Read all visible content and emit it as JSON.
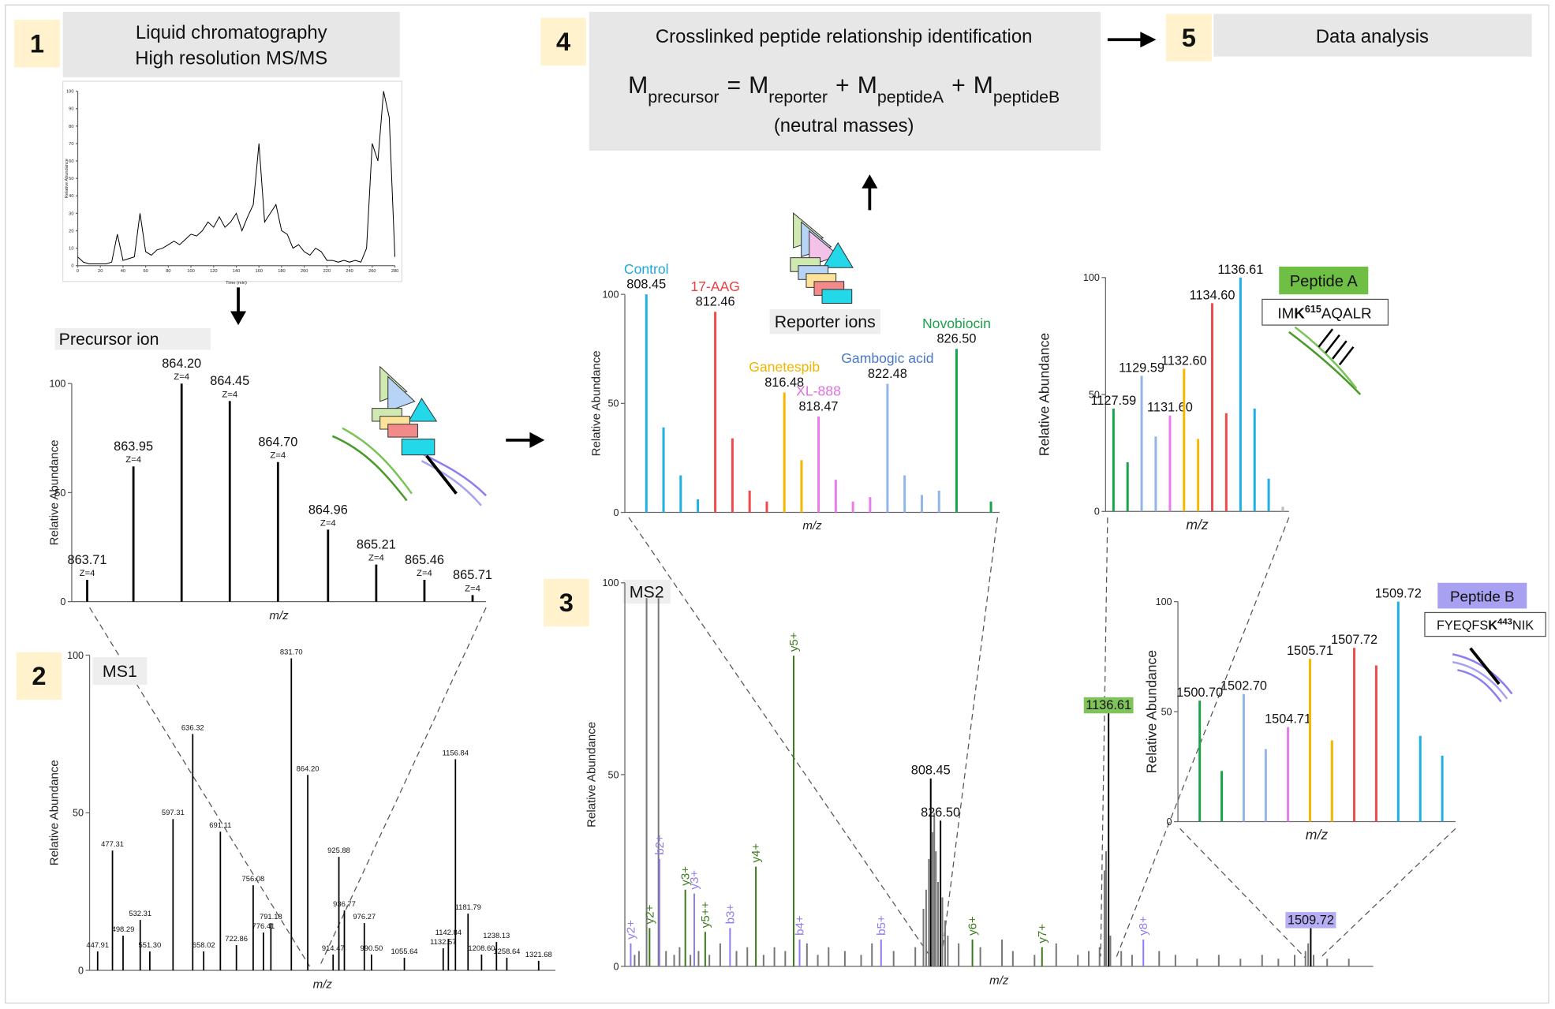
{
  "steps": [
    {
      "number": "1",
      "lines": [
        "Liquid chromatography",
        "High resolution MS/MS"
      ]
    },
    {
      "number": "2"
    },
    {
      "number": "3"
    },
    {
      "number": "4",
      "title": "Crosslinked peptide relationship identification",
      "note": "(neutral masses)"
    },
    {
      "number": "5",
      "title": "Data analysis"
    }
  ],
  "formula": {
    "terms": [
      {
        "base": "M",
        "sub": "precursor"
      },
      {
        "base": "M",
        "sub": "reporter"
      },
      {
        "base": "M",
        "sub": "peptideA"
      },
      {
        "base": "M",
        "sub": "peptideB"
      }
    ],
    "equals": "=",
    "plus": "+"
  },
  "peptides": [
    {
      "title": "Peptide A",
      "prefix": "IM",
      "site": "K",
      "position": "615",
      "suffix": "AQALR",
      "color": "#6fbf45"
    },
    {
      "title": "Peptide B",
      "prefix": "FYEQFS",
      "site": "K",
      "position": "443",
      "suffix": "NIK",
      "color": "#a8a1f2"
    }
  ],
  "chart_data": [
    {
      "type": "line",
      "x_label": "Time (min)",
      "y_label": "Relative Abundance",
      "color": "#000000",
      "x": [
        0,
        5,
        10,
        15,
        20,
        25,
        30,
        35,
        40,
        45,
        50,
        55,
        60,
        65,
        70,
        75,
        80,
        85,
        90,
        95,
        100,
        105,
        110,
        115,
        120,
        125,
        130,
        135,
        140,
        145,
        150,
        155,
        160,
        165,
        170,
        175,
        180,
        185,
        190,
        195,
        200,
        205,
        210,
        215,
        220,
        225,
        230,
        235,
        240,
        245,
        250,
        255,
        260,
        265,
        270,
        275,
        280
      ],
      "values": [
        5,
        2,
        1,
        1,
        1,
        1,
        2,
        18,
        3,
        4,
        5,
        30,
        8,
        6,
        9,
        10,
        12,
        14,
        12,
        15,
        18,
        17,
        20,
        25,
        22,
        28,
        22,
        25,
        30,
        20,
        28,
        35,
        70,
        25,
        30,
        35,
        20,
        18,
        10,
        12,
        8,
        6,
        10,
        8,
        3,
        3,
        2,
        3,
        2,
        3,
        2,
        10,
        70,
        60,
        100,
        85,
        5
      ],
      "xlim": [
        0,
        280
      ],
      "ylim": [
        0,
        100
      ],
      "xticks": [
        0,
        20,
        40,
        60,
        80,
        100,
        120,
        140,
        160,
        180,
        200,
        220,
        240,
        260,
        280
      ],
      "yticks": [
        0,
        10,
        20,
        30,
        40,
        50,
        60,
        70,
        80,
        90,
        100
      ]
    },
    {
      "type": "stem",
      "title": "Precursor ion",
      "x_label": "m/z",
      "y_label": "Relative Abundance",
      "color": "#000000",
      "x": [
        {
          "value": 863.71,
          "label": "863.71"
        },
        {
          "value": 863.95,
          "label": "863.95"
        },
        {
          "value": 864.2,
          "label": "864.20"
        },
        {
          "value": 864.45,
          "label": "864.45"
        },
        {
          "value": 864.7,
          "label": "864.70"
        },
        {
          "value": 864.96,
          "label": "864.96"
        },
        {
          "value": 865.21,
          "label": "865.21"
        },
        {
          "value": 865.46,
          "label": "865.46"
        },
        {
          "value": 865.71,
          "label": "865.71"
        }
      ],
      "values": [
        10,
        62,
        100,
        92,
        64,
        33,
        17,
        10,
        3
      ],
      "charges": [
        "Z=4",
        "Z=4",
        "Z=4",
        "Z=4",
        "Z=4",
        "Z=4",
        "Z=4",
        "Z=4",
        "Z=4"
      ],
      "xlim": [
        863.63,
        865.78
      ],
      "ylim": [
        0,
        100
      ],
      "yticks": [
        0,
        50,
        100
      ]
    },
    {
      "type": "stem",
      "title": "MS1",
      "x_label": "m/z",
      "y_label": "Relative Abundance",
      "color": "#000000",
      "x": [
        {
          "value": 447.91,
          "label": "447.91"
        },
        {
          "value": 477.31,
          "label": "477.31"
        },
        {
          "value": 498.29,
          "label": "498.29"
        },
        {
          "value": 532.31,
          "label": "532.31"
        },
        {
          "value": 551.3,
          "label": "551.30"
        },
        {
          "value": 597.31,
          "label": "597.31"
        },
        {
          "value": 636.32,
          "label": "636.32"
        },
        {
          "value": 658.02,
          "label": "658.02"
        },
        {
          "value": 691.11,
          "label": "691.11"
        },
        {
          "value": 722.86,
          "label": "722.86"
        },
        {
          "value": 756.08,
          "label": "756.08"
        },
        {
          "value": 776.41,
          "label": "776.41"
        },
        {
          "value": 791.18,
          "label": "791.18"
        },
        {
          "value": 831.7,
          "label": "831.70"
        },
        {
          "value": 864.2,
          "label": "864.20"
        },
        {
          "value": 914.47,
          "label": "914.47"
        },
        {
          "value": 925.88,
          "label": "925.88"
        },
        {
          "value": 936.77,
          "label": "936.77"
        },
        {
          "value": 976.27,
          "label": "976.27"
        },
        {
          "value": 990.5,
          "label": "990.50"
        },
        {
          "value": 1055.64,
          "label": "1055.64"
        },
        {
          "value": 1132.57,
          "label": "1132.57"
        },
        {
          "value": 1142.84,
          "label": "1142.84"
        },
        {
          "value": 1156.84,
          "label": "1156.84"
        },
        {
          "value": 1181.79,
          "label": "1181.79"
        },
        {
          "value": 1208.6,
          "label": "1208.60"
        },
        {
          "value": 1238.13,
          "label": "1238.13"
        },
        {
          "value": 1258.64,
          "label": "1258.64"
        },
        {
          "value": 1321.68,
          "label": "1321.68"
        }
      ],
      "values": [
        6,
        38,
        11,
        16,
        6,
        48,
        75,
        6,
        44,
        8,
        27,
        12,
        15,
        99,
        62,
        5,
        36,
        19,
        15,
        5,
        4,
        7,
        10,
        67,
        18,
        5,
        9,
        4,
        3
      ],
      "xlim": [
        432,
        1355
      ],
      "ylim": [
        0,
        100
      ],
      "yticks": [
        0,
        50,
        100
      ]
    },
    {
      "type": "stem",
      "title": "Reporter ions",
      "x_label": "m/z",
      "y_label": "Relative Abundance",
      "series": [
        {
          "name": "Control",
          "color": "#1fb0e3",
          "label_color": "#1fa8e0",
          "peak_label": "808.45",
          "x": [
            808.45,
            809.45,
            810.45,
            811.45
          ],
          "values": [
            100,
            39,
            17,
            6
          ]
        },
        {
          "name": "17-AAG",
          "color": "#ee4b4b",
          "label_color": "#e84040",
          "peak_label": "812.46",
          "x": [
            812.46,
            813.46,
            814.46,
            815.46
          ],
          "values": [
            92,
            34,
            10,
            5
          ]
        },
        {
          "name": "Ganetespib",
          "color": "#f5b800",
          "label_color": "#f0b400",
          "peak_label": "816.48",
          "x": [
            816.48,
            817.48
          ],
          "values": [
            55,
            24
          ]
        },
        {
          "name": "XL-888",
          "color": "#e97ce9",
          "label_color": "#e070e0",
          "peak_label": "818.47",
          "x": [
            818.47,
            819.47,
            820.47,
            821.47
          ],
          "values": [
            44,
            15,
            5,
            7
          ]
        },
        {
          "name": "Gambogic acid",
          "color": "#92b6ea",
          "label_color": "#4a78c8",
          "peak_label": "822.48",
          "x": [
            822.48,
            823.48,
            824.48,
            825.48
          ],
          "values": [
            59,
            17,
            8,
            10
          ]
        },
        {
          "name": "Novobiocin",
          "color": "#1aa34a",
          "label_color": "#1aa34a",
          "peak_label": "826.50",
          "x": [
            826.5,
            828.5
          ],
          "values": [
            75,
            5
          ]
        }
      ],
      "xlim": [
        807.2,
        829.0
      ],
      "ylim": [
        0,
        100
      ],
      "yticks": [
        0,
        50,
        100
      ]
    },
    {
      "type": "stem",
      "x_label": "m/z",
      "y_label": "Relative Abundance",
      "x": [
        {
          "value": 1127.59,
          "label": "1127.59"
        },
        1128.59,
        {
          "value": 1129.59,
          "label": "1129.59"
        },
        1130.59,
        {
          "value": 1131.6,
          "label": "1131.60"
        },
        {
          "value": 1132.6,
          "label": "1132.60"
        },
        1133.6,
        {
          "value": 1134.6,
          "label": "1134.60"
        },
        1135.6,
        {
          "value": 1136.61,
          "label": "1136.61"
        },
        1137.61,
        1138.61,
        1139.61
      ],
      "values": [
        44,
        21,
        58,
        32,
        41,
        61,
        31,
        89,
        42,
        100,
        44,
        14,
        2
      ],
      "colors": [
        "#1aa34a",
        "#1aa34a",
        "#92b6ea",
        "#92b6ea",
        "#e97ce9",
        "#f5b800",
        "#f5b800",
        "#ee4b4b",
        "#ee4b4b",
        "#1fb0e3",
        "#1fb0e3",
        "#1fb0e3",
        "#bbbbbb"
      ],
      "xlim": [
        1127.03,
        1140.05
      ],
      "ylim": [
        0,
        100
      ],
      "yticks": [
        0,
        50,
        100
      ]
    },
    {
      "type": "stem",
      "x_label": "m/z",
      "y_label": "Relative Abundance",
      "x": [
        {
          "value": 1500.7,
          "label": "1500.70"
        },
        1501.7,
        {
          "value": 1502.7,
          "label": "1502.70"
        },
        1503.7,
        {
          "value": 1504.71,
          "label": "1504.71"
        },
        {
          "value": 1505.71,
          "label": "1505.71"
        },
        1506.71,
        {
          "value": 1507.72,
          "label": "1507.72"
        },
        1508.72,
        {
          "value": 1509.72,
          "label": "1509.72"
        },
        1510.72,
        1511.72
      ],
      "values": [
        55,
        23,
        58,
        33,
        43,
        74,
        37,
        79,
        71,
        100,
        39,
        30
      ],
      "colors": [
        "#1aa34a",
        "#1aa34a",
        "#92b6ea",
        "#92b6ea",
        "#e97ce9",
        "#f5b800",
        "#f5b800",
        "#ee4b4b",
        "#ee4b4b",
        "#1fb0e3",
        "#1fb0e3",
        "#1fb0e3"
      ],
      "xlim": [
        1499.71,
        1512.32
      ],
      "ylim": [
        0,
        100
      ],
      "yticks": [
        0,
        50,
        100
      ]
    },
    {
      "type": "stem",
      "title": "MS2",
      "x_label": "m/z",
      "y_label": "Relative Abundance",
      "series": [
        {
          "color": "#777777",
          "x": [
            262,
            270,
            284.1,
            306.1,
            320,
            335,
            345,
            365,
            380,
            400,
            420,
            450,
            470,
            500,
            520,
            540,
            580,
            600,
            620,
            650,
            680,
            700,
            740,
            780,
            795,
            800,
            805,
            812,
            815,
            818,
            822,
            830,
            835,
            840,
            860,
            900,
            940,
            960,
            1000,
            1040,
            1080,
            1100,
            1120,
            1129,
            1132,
            1140,
            1160,
            1180,
            1230,
            1260,
            1300,
            1340,
            1380,
            1420,
            1450,
            1480,
            1500,
            1505,
            1515,
            1540,
            1580
          ],
          "values": [
            3,
            4,
            96,
            96,
            4,
            3,
            5,
            3,
            4,
            3,
            6,
            4,
            5,
            3,
            5,
            4,
            6,
            3,
            5,
            4,
            3,
            6,
            4,
            5,
            15,
            20,
            28,
            35,
            40,
            30,
            22,
            18,
            12,
            8,
            6,
            5,
            7,
            4,
            3,
            6,
            3,
            4,
            5,
            25,
            30,
            8,
            4,
            3,
            4,
            3,
            2,
            3,
            2,
            3,
            2,
            3,
            4,
            6,
            3,
            2,
            2
          ]
        },
        {
          "x": [
            254.8,
            289.6,
            307.9,
            355.6,
            372.1,
            392.3,
            438.1,
            485.8,
            555.5,
            566.5,
            716.8,
            885.4,
            1013.8,
            1200.8
          ],
          "values": [
            6,
            10,
            28,
            20,
            19,
            9,
            10,
            26,
            81,
            7,
            7,
            7,
            5,
            7
          ],
          "labels": [
            "y2+",
            "y2+",
            "b2+",
            "y3+",
            "y3+",
            "y5++",
            "b3+",
            "y4+",
            "y5+",
            "b4+",
            "b5+",
            "y6+",
            "y7+",
            "y8+"
          ],
          "colors": [
            "#8c7ef0",
            "#3d7a1c",
            "#8c7ef0",
            "#3d7a1c",
            "#8c7ef0",
            "#3d7a1c",
            "#8c7ef0",
            "#3d7a1c",
            "#3d7a1c",
            "#8c7ef0",
            "#8c7ef0",
            "#3d7a1c",
            "#3d7a1c",
            "#8c7ef0"
          ]
        },
        {
          "color": "#000000",
          "x": [
            {
              "value": 808.45,
              "label": "808.45"
            },
            {
              "value": 826.5,
              "label": "826.50"
            },
            {
              "value": 1136.61,
              "label": "1136.61"
            },
            {
              "value": 1509.72,
              "label": "1509.72"
            }
          ],
          "values": [
            49,
            38,
            66,
            10
          ],
          "label_fills": [
            null,
            null,
            "#7fc35a",
            "#b5aef5"
          ]
        }
      ],
      "xlim": [
        244,
        1625
      ],
      "ylim": [
        0,
        100
      ],
      "yticks": [
        0,
        50,
        100
      ]
    }
  ]
}
